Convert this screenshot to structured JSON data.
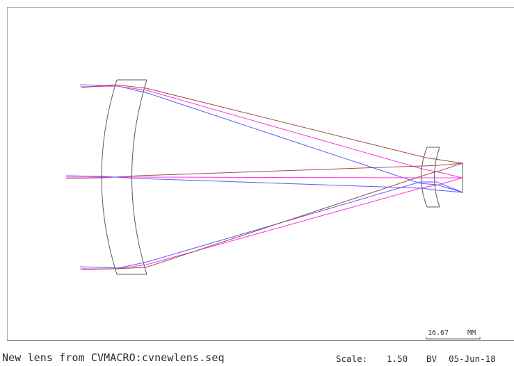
{
  "footer": {
    "title": "New lens from CVMACRO:cvnewlens.seq",
    "scale_label": "Scale:",
    "scale_value": "1.50",
    "initials": "BV",
    "date": "05-Jun-18"
  },
  "scale_bar": {
    "length": "16.67",
    "unit": "MM"
  },
  "colors": {
    "lens_outline": "#5a5a5a",
    "ray_blue": "#5a5aff",
    "ray_magenta": "#ff33dd",
    "ray_brown": "#9a5040",
    "frame": "#a6a6a6"
  }
}
